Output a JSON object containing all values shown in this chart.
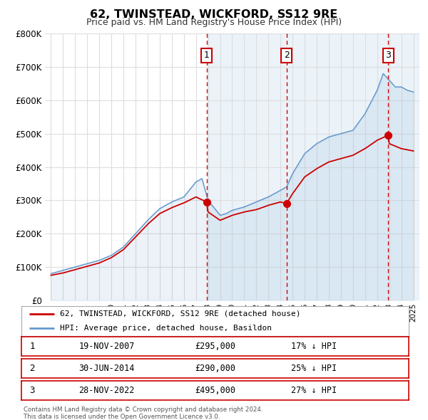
{
  "title": "62, TWINSTEAD, WICKFORD, SS12 9RE",
  "subtitle": "Price paid vs. HM Land Registry's House Price Index (HPI)",
  "legend_line1": "62, TWINSTEAD, WICKFORD, SS12 9RE (detached house)",
  "legend_line2": "HPI: Average price, detached house, Basildon",
  "red_line_color": "#cc0000",
  "blue_line_color": "#6699cc",
  "background_color": "#ffffff",
  "grid_color": "#dddddd",
  "sale_points": [
    {
      "label": "1",
      "date_num": 2007.886,
      "price": 295000,
      "date_str": "19-NOV-2007",
      "pct": "17%"
    },
    {
      "label": "2",
      "date_num": 2014.496,
      "price": 290000,
      "date_str": "30-JUN-2014",
      "pct": "25%"
    },
    {
      "label": "3",
      "date_num": 2022.91,
      "price": 495000,
      "date_str": "28-NOV-2022",
      "pct": "27%"
    }
  ],
  "footer1": "Contains HM Land Registry data © Crown copyright and database right 2024.",
  "footer2": "This data is licensed under the Open Government Licence v3.0.",
  "ylim": [
    0,
    800000
  ],
  "yticks": [
    0,
    100000,
    200000,
    300000,
    400000,
    500000,
    600000,
    700000,
    800000
  ],
  "ytick_labels": [
    "£0",
    "£100K",
    "£200K",
    "£300K",
    "£400K",
    "£500K",
    "£600K",
    "£700K",
    "£800K"
  ],
  "hpi_key_years": [
    1995,
    1996,
    1997,
    1998,
    1999,
    2000,
    2001,
    2002,
    2003,
    2004,
    2005,
    2006,
    2007,
    2007.5,
    2008,
    2009,
    2009.5,
    2010,
    2011,
    2012,
    2013,
    2014,
    2014.5,
    2015,
    2016,
    2017,
    2018,
    2019,
    2020,
    2021,
    2022,
    2022.5,
    2023,
    2023.5,
    2024,
    2024.5,
    2025
  ],
  "hpi_key_vals": [
    80000,
    90000,
    100000,
    110000,
    120000,
    135000,
    160000,
    200000,
    240000,
    275000,
    295000,
    310000,
    355000,
    365000,
    300000,
    255000,
    260000,
    270000,
    280000,
    295000,
    310000,
    330000,
    340000,
    380000,
    440000,
    470000,
    490000,
    500000,
    510000,
    560000,
    630000,
    680000,
    660000,
    640000,
    640000,
    630000,
    625000
  ],
  "red_key_years": [
    1995,
    1996,
    1997,
    1998,
    1999,
    2000,
    2001,
    2002,
    2003,
    2004,
    2005,
    2006,
    2007,
    2007.886,
    2008,
    2009,
    2010,
    2011,
    2012,
    2013,
    2014,
    2014.496,
    2015,
    2016,
    2017,
    2018,
    2019,
    2020,
    2021,
    2022,
    2022.91,
    2023,
    2024,
    2025
  ],
  "red_key_vals": [
    75000,
    82000,
    92000,
    102000,
    112000,
    128000,
    152000,
    190000,
    228000,
    260000,
    278000,
    292000,
    310000,
    295000,
    265000,
    240000,
    255000,
    265000,
    272000,
    285000,
    295000,
    290000,
    320000,
    370000,
    395000,
    415000,
    425000,
    435000,
    455000,
    480000,
    495000,
    470000,
    455000,
    448000
  ]
}
